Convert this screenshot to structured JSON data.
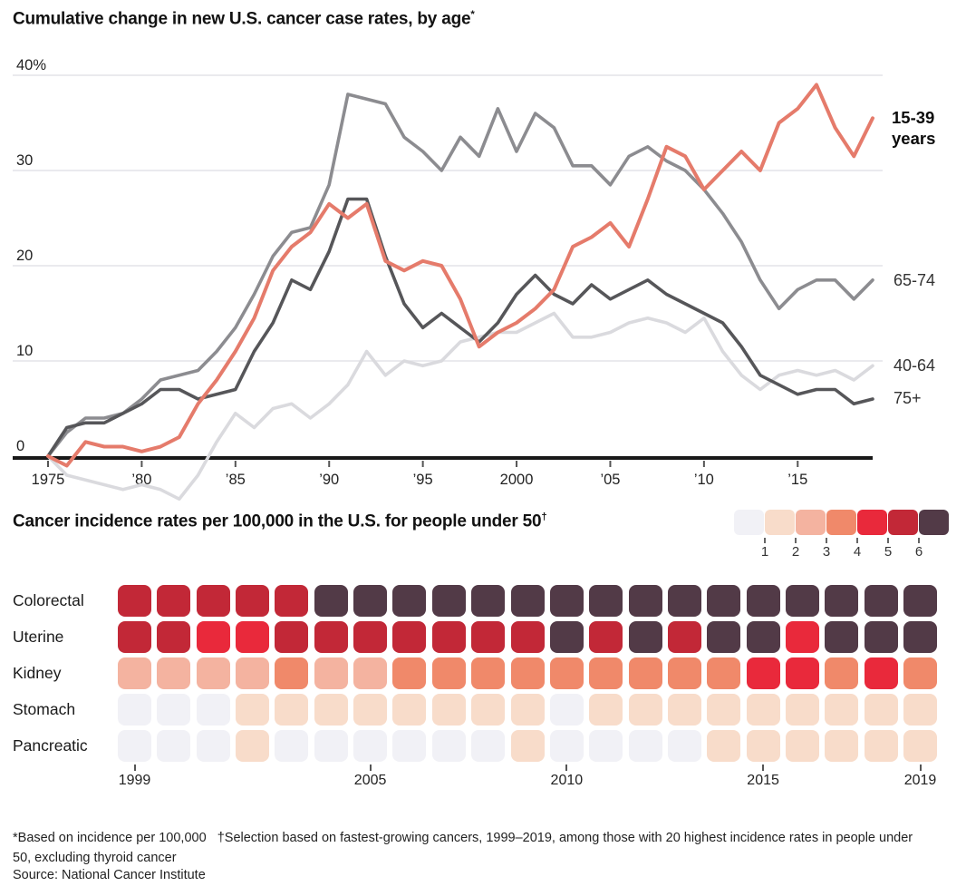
{
  "chart_data": [
    {
      "type": "line",
      "title_text": "Cumulative change in new U.S. cancer case rates, by age",
      "title_sup": "*",
      "unit": "%",
      "x_start": 1975,
      "x_end": 2019,
      "x_ticks": [
        1975,
        1980,
        1985,
        1990,
        1995,
        2000,
        2005,
        2010,
        2015
      ],
      "x_tick_labels": [
        "1975",
        "’80",
        "’85",
        "’90",
        "’95",
        "2000",
        "’05",
        "’10",
        "’15"
      ],
      "y_ticks": [
        0,
        10,
        20,
        30,
        40
      ],
      "y_tick_labels": [
        "0",
        "10",
        "20",
        "30",
        "40%"
      ],
      "ylim": [
        -5,
        42
      ],
      "grid": true,
      "legend_position": "right-of-line-ends",
      "series": [
        {
          "name": "15-39 years",
          "end_label_line1": "15-39",
          "end_label_line2": "years",
          "color": "#e57b6b",
          "values": [
            0,
            -1,
            1.5,
            1,
            1,
            0.5,
            1,
            2,
            5.5,
            8,
            11,
            14.5,
            19.5,
            22,
            23.5,
            26.5,
            25,
            26.5,
            20.5,
            19.5,
            20.5,
            20,
            16.5,
            11.5,
            13,
            14,
            15.5,
            17.5,
            22,
            23,
            24.5,
            22,
            27,
            32.5,
            31.5,
            28,
            30,
            32,
            30,
            35,
            36.5,
            39,
            34.5,
            31.5,
            35.5
          ]
        },
        {
          "name": "65-74",
          "color": "#8c8c90",
          "values": [
            0,
            2.5,
            4,
            4,
            4.5,
            6,
            8,
            8.5,
            9,
            11,
            13.5,
            17,
            21,
            23.5,
            24,
            28.5,
            38,
            37.5,
            37,
            33.5,
            32,
            30,
            33.5,
            31.5,
            36.5,
            32,
            36,
            34.5,
            30.5,
            30.5,
            28.5,
            31.5,
            32.5,
            31,
            30,
            28,
            25.5,
            22.5,
            18.5,
            15.5,
            17.5,
            18.5,
            18.5,
            16.5,
            18.5
          ]
        },
        {
          "name": "40-64",
          "color": "#dadade",
          "values": [
            0,
            -2,
            -2.5,
            -3,
            -3.5,
            -3,
            -3.5,
            -4.5,
            -2,
            1.5,
            4.5,
            3,
            5,
            5.5,
            4,
            5.5,
            7.5,
            11,
            8.5,
            10,
            9.5,
            10,
            12,
            12.5,
            13,
            13,
            14,
            15,
            12.5,
            12.5,
            13,
            14,
            14.5,
            14,
            13,
            14.5,
            11,
            8.5,
            7,
            8.5,
            9,
            8.5,
            9,
            8,
            9.5
          ]
        },
        {
          "name": "75+",
          "color": "#565659",
          "values": [
            0,
            3,
            3.5,
            3.5,
            4.5,
            5.5,
            7,
            7,
            6,
            6.5,
            7,
            11,
            14,
            18.5,
            17.5,
            21.5,
            27,
            27,
            21,
            16,
            13.5,
            15,
            13.5,
            12,
            14,
            17,
            19,
            17,
            16,
            18,
            16.5,
            17.5,
            18.5,
            17,
            16,
            15,
            14,
            11.5,
            8.5,
            7.5,
            6.5,
            7,
            7,
            5.5,
            6
          ]
        }
      ]
    },
    {
      "type": "heatmap",
      "title_text": "Cancer incidence rates per 100,000 in the U.S. for people under 50",
      "title_sup": "†",
      "rows": [
        "Colorectal",
        "Uterine",
        "Kidney",
        "Stomach",
        "Pancreatic"
      ],
      "columns": [
        1999,
        2000,
        2001,
        2002,
        2003,
        2004,
        2005,
        2006,
        2007,
        2008,
        2009,
        2010,
        2011,
        2012,
        2013,
        2014,
        2015,
        2016,
        2017,
        2018,
        2019
      ],
      "x_tick_labels": [
        {
          "label": "1999",
          "col": 0
        },
        {
          "label": "2005",
          "col": 6
        },
        {
          "label": "2010",
          "col": 11
        },
        {
          "label": "2015",
          "col": 16
        },
        {
          "label": "2019",
          "col": 20
        }
      ],
      "palette": [
        "#f1f1f6",
        "#f8dcca",
        "#f4b3a0",
        "#f0896a",
        "#e9293b",
        "#c22837",
        "#523a47"
      ],
      "legend_tick_labels": [
        "1",
        "2",
        "3",
        "4",
        "5",
        "6"
      ],
      "values": [
        [
          6,
          6,
          6,
          6,
          6,
          7,
          7,
          7,
          7,
          7,
          7,
          7,
          7,
          7,
          7,
          7,
          7,
          7,
          7,
          7,
          7
        ],
        [
          6,
          6,
          5,
          5,
          6,
          6,
          6,
          6,
          6,
          6,
          6,
          7,
          6,
          7,
          6,
          7,
          7,
          5,
          7,
          7,
          7
        ],
        [
          3,
          3,
          3,
          3,
          4,
          3,
          3,
          4,
          4,
          4,
          4,
          4,
          4,
          4,
          4,
          4,
          5,
          5,
          4,
          5,
          4
        ],
        [
          1,
          1,
          1,
          2,
          2,
          2,
          2,
          2,
          2,
          2,
          2,
          1,
          2,
          2,
          2,
          2,
          2,
          2,
          2,
          2,
          2
        ],
        [
          1,
          1,
          1,
          2,
          1,
          1,
          1,
          1,
          1,
          1,
          2,
          1,
          1,
          1,
          1,
          2,
          2,
          2,
          2,
          2,
          2
        ]
      ]
    }
  ],
  "footnotes": {
    "notes": "*Based on incidence per 100,000   †Selection based on fastest-growing cancers, 1999–2019, among those with 20 highest incidence rates in people under 50, excluding thyroid cancer",
    "source": "Source: National Cancer Institute"
  }
}
